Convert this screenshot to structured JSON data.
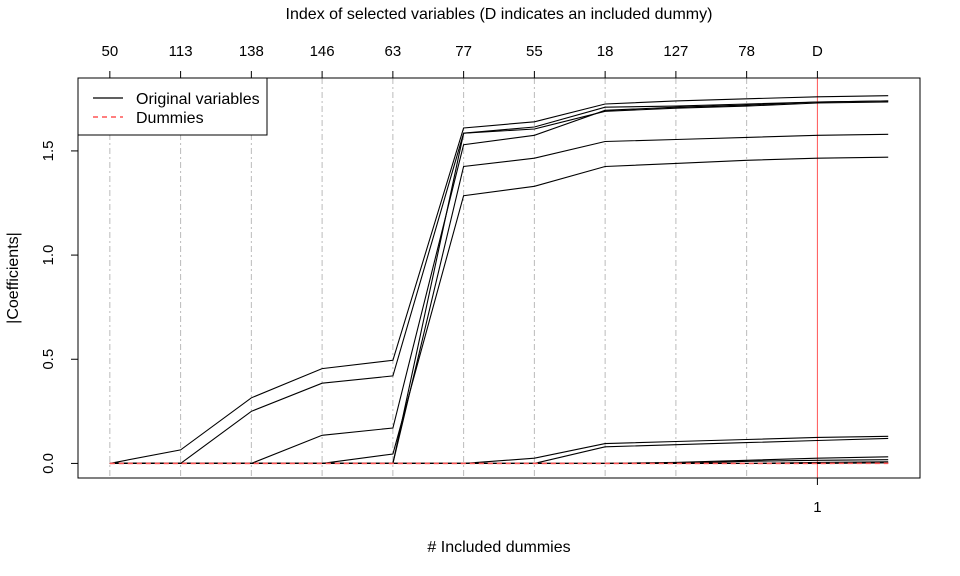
{
  "chart_data": {
    "type": "line",
    "title": "Index of selected variables (D indicates an included dummy)",
    "xlabel": "# Included dummies",
    "ylabel": "|Coefficients|",
    "xlim": [
      0.55,
      12.45
    ],
    "ylim": [
      -0.07,
      1.85
    ],
    "x": [
      1,
      2,
      3,
      4,
      5,
      6,
      7,
      8,
      9,
      10,
      11,
      12
    ],
    "y_ticks": [
      0.0,
      0.5,
      1.0,
      1.5
    ],
    "y_tick_labels": [
      "0.0",
      "0.5",
      "1.0",
      "1.5"
    ],
    "bottom_ticks": [
      {
        "x": 11,
        "label": "1"
      }
    ],
    "top_ticks": [
      {
        "x": 1,
        "label": "50"
      },
      {
        "x": 2,
        "label": "113"
      },
      {
        "x": 3,
        "label": "138"
      },
      {
        "x": 4,
        "label": "146"
      },
      {
        "x": 5,
        "label": "63"
      },
      {
        "x": 6,
        "label": "77"
      },
      {
        "x": 7,
        "label": "55"
      },
      {
        "x": 8,
        "label": "18"
      },
      {
        "x": 9,
        "label": "127"
      },
      {
        "x": 10,
        "label": "78"
      },
      {
        "x": 11,
        "label": "D"
      }
    ],
    "grid_lines_x": [
      1,
      2,
      3,
      4,
      5,
      6,
      7,
      8,
      9,
      10
    ],
    "dummy_inclusion_x": 11,
    "grid": true,
    "legend": {
      "position": "top-left",
      "entries": [
        {
          "label": "Original variables",
          "style": "solid",
          "color": "#000000"
        },
        {
          "label": "Dummies",
          "style": "dashed",
          "color": "#ff5555"
        }
      ]
    },
    "colors": {
      "original": "#000000",
      "dummy": "#ff5555",
      "grid": "#bbbbbb",
      "dummy_line": "#ff5555"
    },
    "series": [
      {
        "group": "original",
        "values": [
          0,
          0.065,
          0.315,
          0.455,
          0.495,
          1.61,
          1.64,
          1.725,
          1.74,
          1.75,
          1.76,
          1.765
        ]
      },
      {
        "group": "original",
        "values": [
          0,
          0,
          0.25,
          0.385,
          0.42,
          1.585,
          1.615,
          1.71,
          1.715,
          1.725,
          1.735,
          1.74
        ]
      },
      {
        "group": "original",
        "values": [
          0,
          0,
          0,
          0,
          0,
          1.585,
          1.605,
          1.69,
          1.705,
          1.715,
          1.73,
          1.735
        ]
      },
      {
        "group": "original",
        "values": [
          0,
          0,
          0,
          0.135,
          0.17,
          1.53,
          1.575,
          1.695,
          1.71,
          1.72,
          1.735,
          1.74
        ]
      },
      {
        "group": "original",
        "values": [
          0,
          0,
          0,
          0,
          0,
          1.425,
          1.465,
          1.545,
          1.555,
          1.565,
          1.575,
          1.58
        ]
      },
      {
        "group": "original",
        "values": [
          0,
          0,
          0,
          0,
          0.045,
          1.285,
          1.33,
          1.425,
          1.44,
          1.455,
          1.465,
          1.47
        ]
      },
      {
        "group": "original",
        "values": [
          0,
          0,
          0,
          0,
          0,
          0,
          0.025,
          0.095,
          0.105,
          0.115,
          0.125,
          0.13
        ]
      },
      {
        "group": "original",
        "values": [
          0,
          0,
          0,
          0,
          0,
          0,
          0,
          0.08,
          0.09,
          0.1,
          0.11,
          0.12
        ]
      },
      {
        "group": "original",
        "values": [
          0,
          0,
          0,
          0,
          0,
          0,
          0,
          0,
          0.005,
          0.015,
          0.025,
          0.032
        ]
      },
      {
        "group": "original",
        "values": [
          0,
          0,
          0,
          0,
          0,
          0,
          0,
          0,
          0,
          0.01,
          0.015,
          0.018
        ]
      },
      {
        "group": "original",
        "values": [
          0,
          0,
          0,
          0,
          0,
          0,
          0,
          0,
          0,
          0,
          0.005,
          0.008
        ]
      },
      {
        "group": "original",
        "values": [
          0,
          0,
          0,
          0,
          0,
          0,
          0,
          0,
          0,
          0,
          0,
          0.003
        ]
      },
      {
        "group": "dummy",
        "values": [
          0,
          0,
          0,
          0,
          0,
          0,
          0,
          0,
          0,
          0,
          0,
          0
        ]
      },
      {
        "group": "dummy",
        "values": [
          0,
          0,
          0,
          0,
          0,
          0,
          0,
          0,
          0,
          0,
          0,
          0.001
        ]
      }
    ]
  }
}
